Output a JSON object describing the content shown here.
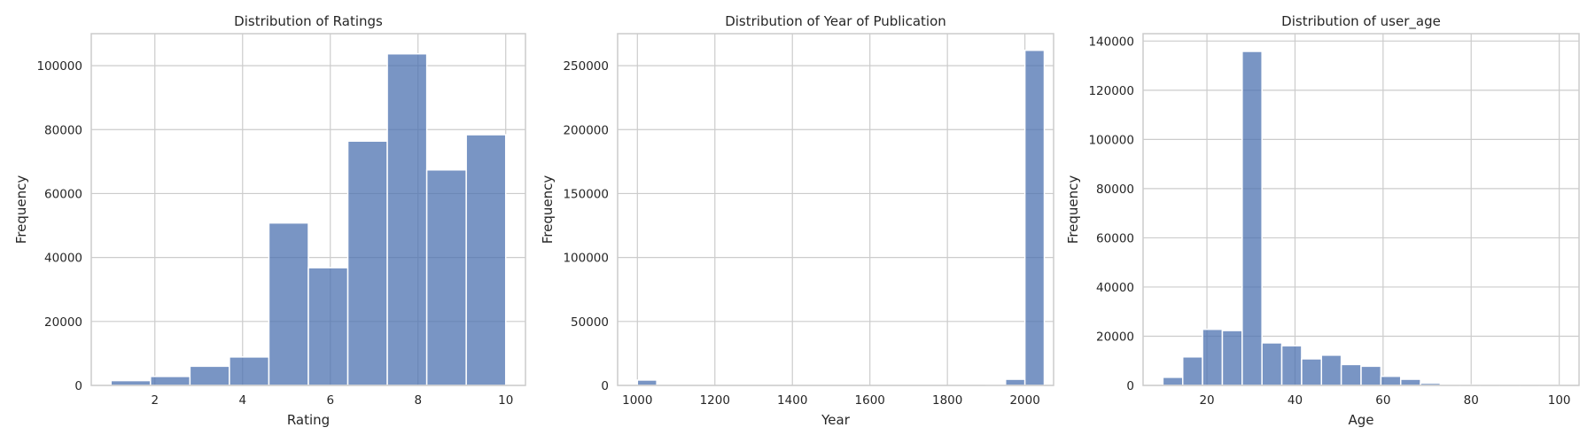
{
  "chart_data": [
    {
      "type": "bar",
      "title": "Distribution of Ratings",
      "xlabel": "Rating",
      "ylabel": "Frequency",
      "xlim": [
        0.55,
        10.45
      ],
      "ylim": [
        0,
        110000
      ],
      "xticks": [
        2,
        4,
        6,
        8,
        10
      ],
      "yticks": [
        0,
        20000,
        40000,
        60000,
        80000,
        100000
      ],
      "grid": true,
      "bar_color": "#4c72b0",
      "bins": [
        {
          "x0": 1.0,
          "x1": 1.9,
          "value": 1500
        },
        {
          "x0": 1.9,
          "x1": 2.8,
          "value": 2800
        },
        {
          "x0": 2.8,
          "x1": 3.7,
          "value": 6000
        },
        {
          "x0": 3.7,
          "x1": 4.6,
          "value": 8900
        },
        {
          "x0": 4.6,
          "x1": 5.5,
          "value": 50800
        },
        {
          "x0": 5.5,
          "x1": 6.4,
          "value": 36800
        },
        {
          "x0": 6.4,
          "x1": 7.3,
          "value": 76400
        },
        {
          "x0": 7.3,
          "x1": 8.2,
          "value": 103700
        },
        {
          "x0": 8.2,
          "x1": 9.1,
          "value": 67400
        },
        {
          "x0": 9.1,
          "x1": 10.0,
          "value": 78400
        }
      ]
    },
    {
      "type": "bar",
      "title": "Distribution of Year of Publication",
      "xlabel": "Year",
      "ylabel": "Frequency",
      "xlim": [
        949,
        2074
      ],
      "ylim": [
        0,
        275000
      ],
      "xticks": [
        1000,
        1200,
        1400,
        1600,
        1800,
        2000
      ],
      "yticks": [
        0,
        50000,
        100000,
        150000,
        200000,
        250000
      ],
      "grid": true,
      "bar_color": "#4c72b0",
      "bins": [
        {
          "x0": 1000,
          "x1": 1050,
          "value": 4200
        },
        {
          "x0": 1050,
          "x1": 1100,
          "value": 0
        },
        {
          "x0": 1100,
          "x1": 1150,
          "value": 0
        },
        {
          "x0": 1150,
          "x1": 1200,
          "value": 0
        },
        {
          "x0": 1200,
          "x1": 1250,
          "value": 0
        },
        {
          "x0": 1250,
          "x1": 1300,
          "value": 0
        },
        {
          "x0": 1300,
          "x1": 1350,
          "value": 0
        },
        {
          "x0": 1350,
          "x1": 1400,
          "value": 0
        },
        {
          "x0": 1400,
          "x1": 1450,
          "value": 0
        },
        {
          "x0": 1450,
          "x1": 1500,
          "value": 0
        },
        {
          "x0": 1500,
          "x1": 1550,
          "value": 0
        },
        {
          "x0": 1550,
          "x1": 1600,
          "value": 0
        },
        {
          "x0": 1600,
          "x1": 1650,
          "value": 0
        },
        {
          "x0": 1650,
          "x1": 1700,
          "value": 0
        },
        {
          "x0": 1700,
          "x1": 1750,
          "value": 0
        },
        {
          "x0": 1750,
          "x1": 1800,
          "value": 0
        },
        {
          "x0": 1800,
          "x1": 1850,
          "value": 0
        },
        {
          "x0": 1850,
          "x1": 1900,
          "value": 0
        },
        {
          "x0": 1900,
          "x1": 1950,
          "value": 200
        },
        {
          "x0": 1950,
          "x1": 2000,
          "value": 4800
        },
        {
          "x0": 2000,
          "x1": 2050,
          "value": 262000
        }
      ]
    },
    {
      "type": "bar",
      "title": "Distribution of user_age",
      "xlabel": "Age",
      "ylabel": "Frequency",
      "xlim": [
        5.5,
        104.5
      ],
      "ylim": [
        0,
        143000
      ],
      "xticks": [
        20,
        40,
        60,
        80,
        100
      ],
      "yticks": [
        0,
        20000,
        40000,
        60000,
        80000,
        100000,
        120000,
        140000
      ],
      "grid": true,
      "bar_color": "#4c72b0",
      "bins": [
        {
          "x0": 10.0,
          "x1": 14.5,
          "value": 3300
        },
        {
          "x0": 14.5,
          "x1": 19.0,
          "value": 11600
        },
        {
          "x0": 19.0,
          "x1": 23.5,
          "value": 22800
        },
        {
          "x0": 23.5,
          "x1": 28.0,
          "value": 22300
        },
        {
          "x0": 28.0,
          "x1": 32.5,
          "value": 135800
        },
        {
          "x0": 32.5,
          "x1": 37.0,
          "value": 17300
        },
        {
          "x0": 37.0,
          "x1": 41.5,
          "value": 16100
        },
        {
          "x0": 41.5,
          "x1": 46.0,
          "value": 10800
        },
        {
          "x0": 46.0,
          "x1": 50.5,
          "value": 12300
        },
        {
          "x0": 50.5,
          "x1": 55.0,
          "value": 8500
        },
        {
          "x0": 55.0,
          "x1": 59.5,
          "value": 7800
        },
        {
          "x0": 59.5,
          "x1": 64.0,
          "value": 3700
        },
        {
          "x0": 64.0,
          "x1": 68.5,
          "value": 2500
        },
        {
          "x0": 68.5,
          "x1": 73.0,
          "value": 900
        },
        {
          "x0": 73.0,
          "x1": 77.5,
          "value": 300
        },
        {
          "x0": 77.5,
          "x1": 82.0,
          "value": 200
        },
        {
          "x0": 82.0,
          "x1": 86.5,
          "value": 100
        },
        {
          "x0": 86.5,
          "x1": 91.0,
          "value": 100
        },
        {
          "x0": 91.0,
          "x1": 95.5,
          "value": 50
        },
        {
          "x0": 95.5,
          "x1": 100.0,
          "value": 50
        }
      ]
    }
  ]
}
